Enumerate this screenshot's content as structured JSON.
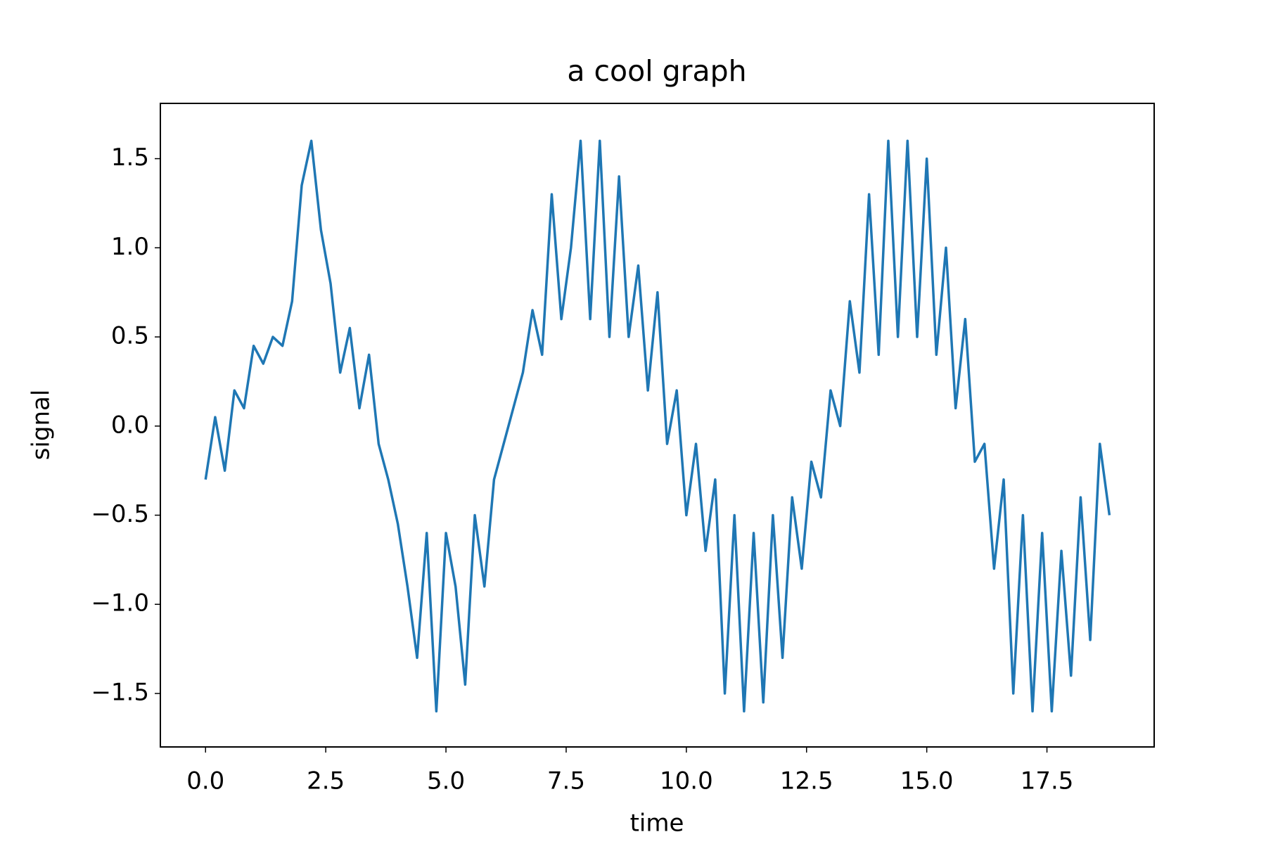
{
  "chart_data": {
    "type": "line",
    "title": "a cool graph",
    "x_label": "time",
    "y_label": "signal",
    "x": [
      0.0,
      0.2,
      0.4,
      0.6,
      0.8,
      1.0,
      1.2,
      1.4,
      1.6,
      1.8,
      2.0,
      2.2,
      2.4,
      2.6,
      2.8,
      3.0,
      3.2,
      3.4,
      3.6,
      3.8,
      4.0,
      4.2,
      4.4,
      4.6,
      4.8,
      5.0,
      5.2,
      5.4,
      5.6,
      5.8,
      6.0,
      6.2,
      6.4,
      6.6,
      6.8,
      7.0,
      7.2,
      7.4,
      7.6,
      7.8,
      8.0,
      8.2,
      8.4,
      8.6,
      8.8,
      9.0,
      9.2,
      9.4,
      9.6,
      9.8,
      10.0,
      10.2,
      10.4,
      10.6,
      10.8,
      11.0,
      11.2,
      11.4,
      11.6,
      11.8,
      12.0,
      12.2,
      12.4,
      12.6,
      12.8,
      13.0,
      13.2,
      13.4,
      13.6,
      13.8,
      14.0,
      14.2,
      14.4,
      14.6,
      14.8,
      15.0,
      15.2,
      15.4,
      15.6,
      15.8,
      16.0,
      16.2,
      16.4,
      16.6,
      16.8,
      17.0,
      17.2,
      17.4,
      17.6,
      17.8,
      18.0,
      18.2,
      18.4,
      18.6,
      18.8
    ],
    "series": [
      {
        "name": "signal",
        "color": "#1f77b4",
        "values": [
          -0.3,
          0.05,
          -0.25,
          0.2,
          0.1,
          0.45,
          0.35,
          0.5,
          0.45,
          0.7,
          1.35,
          1.6,
          1.1,
          0.8,
          0.3,
          0.55,
          0.1,
          0.4,
          -0.1,
          -0.3,
          -0.55,
          -0.9,
          -1.3,
          -0.6,
          -1.6,
          -0.6,
          -0.9,
          -1.45,
          -0.5,
          -0.9,
          -0.3,
          -0.1,
          0.1,
          0.3,
          0.65,
          0.4,
          1.3,
          0.6,
          1.0,
          1.6,
          0.6,
          1.6,
          0.5,
          1.4,
          0.5,
          0.9,
          0.2,
          0.75,
          -0.1,
          0.2,
          -0.5,
          -0.1,
          -0.7,
          -0.3,
          -1.5,
          -0.5,
          -1.6,
          -0.6,
          -1.55,
          -0.5,
          -1.3,
          -0.4,
          -0.8,
          -0.2,
          -0.4,
          0.2,
          0.0,
          0.7,
          0.3,
          1.3,
          0.4,
          1.6,
          0.5,
          1.6,
          0.5,
          1.5,
          0.4,
          1.0,
          0.1,
          0.6,
          -0.2,
          -0.1,
          -0.8,
          -0.3,
          -1.5,
          -0.5,
          -1.6,
          -0.6,
          -1.6,
          -0.7,
          -1.4,
          -0.4,
          -1.2,
          -0.1,
          -0.5
        ]
      }
    ],
    "xlim": [
      -0.94,
      19.73
    ],
    "ylim": [
      -1.8,
      1.81
    ],
    "xticks": [
      {
        "value": 0,
        "label": "0.0"
      },
      {
        "value": 2.5,
        "label": "2.5"
      },
      {
        "value": 5,
        "label": "5.0"
      },
      {
        "value": 7.5,
        "label": "7.5"
      },
      {
        "value": 10,
        "label": "10.0"
      },
      {
        "value": 12.5,
        "label": "12.5"
      },
      {
        "value": 15,
        "label": "15.0"
      },
      {
        "value": 17.5,
        "label": "17.5"
      }
    ],
    "yticks": [
      {
        "value": -1.5,
        "label": "−1.5"
      },
      {
        "value": -1,
        "label": "−1.0"
      },
      {
        "value": -0.5,
        "label": "−0.5"
      },
      {
        "value": 0,
        "label": "0.0"
      },
      {
        "value": 0.5,
        "label": "0.5"
      },
      {
        "value": 1,
        "label": "1.0"
      },
      {
        "value": 1.5,
        "label": "1.5"
      }
    ],
    "grid": false
  }
}
